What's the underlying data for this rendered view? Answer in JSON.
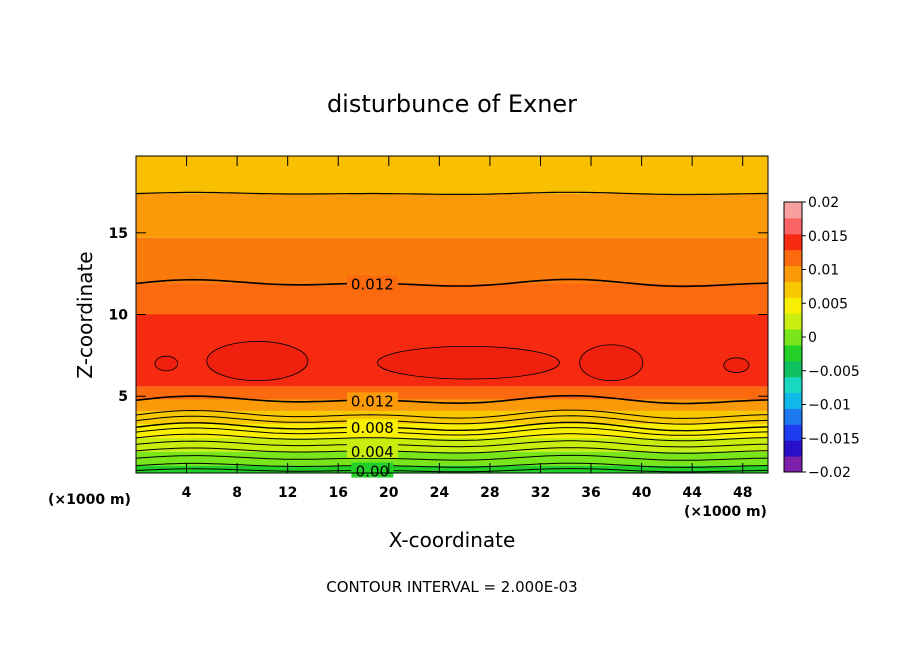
{
  "chart_data": {
    "type": "contour",
    "title": "disturbunce of Exner",
    "xlabel": "X-coordinate",
    "ylabel": "Z-coordinate",
    "x_unit_left": "(×1000 m)",
    "x_unit_right": "(×1000 m)",
    "xlim": [
      0,
      50
    ],
    "ylim": [
      0.3,
      19.7
    ],
    "xticks": [
      "4",
      "8",
      "12",
      "16",
      "20",
      "24",
      "28",
      "32",
      "36",
      "40",
      "44",
      "48"
    ],
    "yticks": [
      "5",
      "10",
      "15"
    ],
    "contour_labels": [
      {
        "text": "0.012",
        "x": 18.7,
        "z": 11.9
      },
      {
        "text": "0.012",
        "x": 18.7,
        "z": 4.75
      },
      {
        "text": "0.008",
        "x": 18.7,
        "z": 3.1
      },
      {
        "text": "0.004",
        "x": 18.7,
        "z": 1.65
      },
      {
        "text": "0.00",
        "x": 18.7,
        "z": 0.45
      }
    ],
    "color_levels": [
      -0.02,
      -0.0175,
      -0.015,
      -0.0125,
      -0.01,
      -0.0075,
      -0.005,
      -0.0025,
      0,
      0.0025,
      0.005,
      0.0075,
      0.01,
      0.0125,
      0.015,
      0.0175,
      0.02
    ],
    "colorbar_labels": [
      "0.02",
      "0.015",
      "0.01",
      "0.005",
      "0",
      "−0.005",
      "−0.01",
      "−0.015",
      "−0.02"
    ],
    "colorbar_colors": [
      "#7d1fa8",
      "#2a0fc8",
      "#1e3cf0",
      "#1e78f0",
      "#10b8e8",
      "#18d8c0",
      "#10c060",
      "#22d028",
      "#78e61a",
      "#c8ee10",
      "#f8f000",
      "#f8c800",
      "#fa9a08",
      "#fc6a10",
      "#f52a10",
      "#fa6464",
      "#f8a0a0"
    ],
    "footer": "CONTOUR INTERVAL = 2.000E-03"
  }
}
